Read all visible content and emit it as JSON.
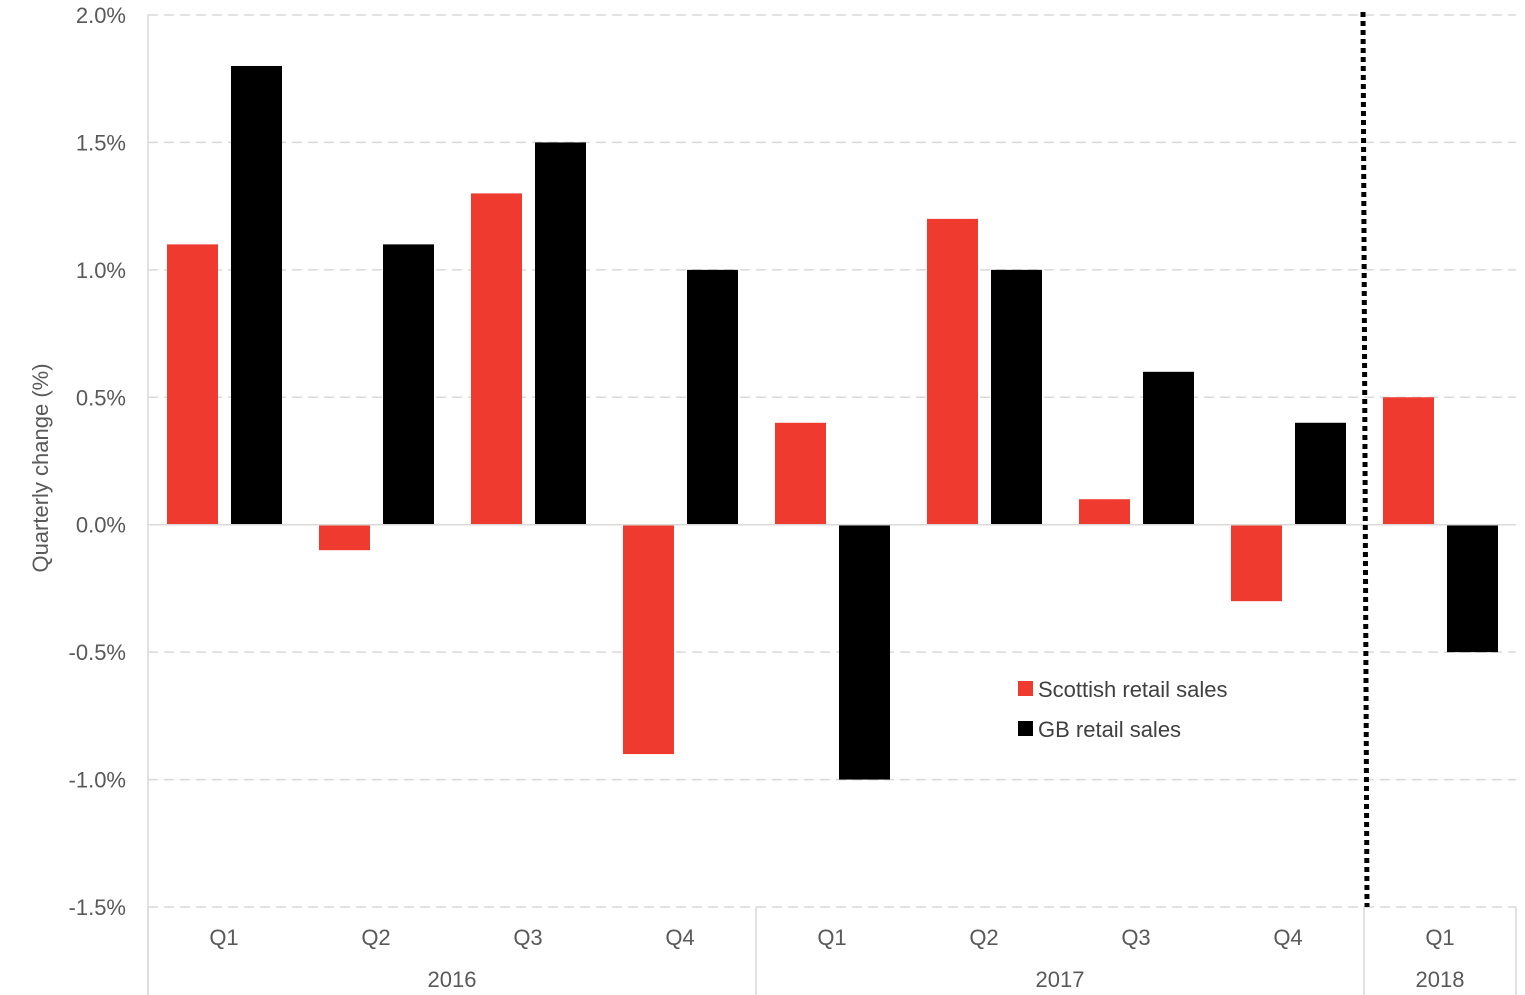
{
  "chart_data": {
    "type": "bar",
    "ylabel": "Quarterly change (%)",
    "ylim": [
      -1.5,
      2.0
    ],
    "y_ticks": [
      -1.5,
      -1.0,
      -0.5,
      0.0,
      0.5,
      1.0,
      1.5,
      2.0
    ],
    "y_tick_labels": [
      "-1.5%",
      "-1.0%",
      "-0.5%",
      "0.0%",
      "0.5%",
      "1.0%",
      "1.5%",
      "2.0%"
    ],
    "categories": [
      "Q1",
      "Q2",
      "Q3",
      "Q4",
      "Q1",
      "Q2",
      "Q3",
      "Q4",
      "Q1"
    ],
    "year_groups": [
      {
        "label": "2016",
        "count": 4
      },
      {
        "label": "2017",
        "count": 4
      },
      {
        "label": "2018",
        "count": 1
      }
    ],
    "series": [
      {
        "name": "Scottish retail sales",
        "color": "#ee3a2f",
        "values": [
          1.1,
          -0.1,
          1.3,
          -0.9,
          0.4,
          1.2,
          0.1,
          -0.3,
          0.5
        ]
      },
      {
        "name": "GB retail sales",
        "color": "#000000",
        "values": [
          1.8,
          1.1,
          1.5,
          1.0,
          -1.0,
          1.0,
          0.6,
          0.4,
          -0.5
        ]
      }
    ],
    "grid": "horizontal dashed",
    "legend_position": "center-right",
    "divider": {
      "style": "dotted",
      "between_categories": [
        7,
        8
      ]
    }
  }
}
